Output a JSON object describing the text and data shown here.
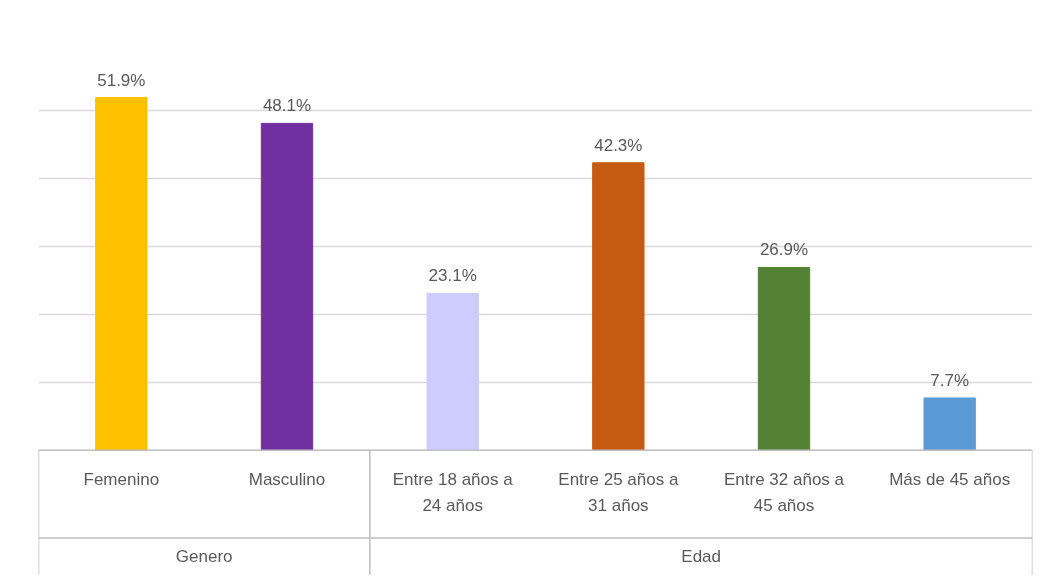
{
  "chart_data": {
    "type": "bar",
    "categories": [
      "Femenino",
      "Masculino",
      "Entre 18 años a 24 años",
      "Entre 25 años a 31 años",
      "Entre 32 años a 45 años",
      "Más de 45 años"
    ],
    "values": [
      51.9,
      48.1,
      23.1,
      42.3,
      26.9,
      7.7
    ],
    "value_labels": [
      "51.9%",
      "48.1%",
      "23.1%",
      "42.3%",
      "26.9%",
      "7.7%"
    ],
    "colors": [
      "#ffc000",
      "#7030a0",
      "#ccccff",
      "#c55a11",
      "#548235",
      "#5b9bd5"
    ],
    "annotations": [
      "Genero",
      "Edad"
    ],
    "tick_labels": "x",
    "grid": "y"
  }
}
